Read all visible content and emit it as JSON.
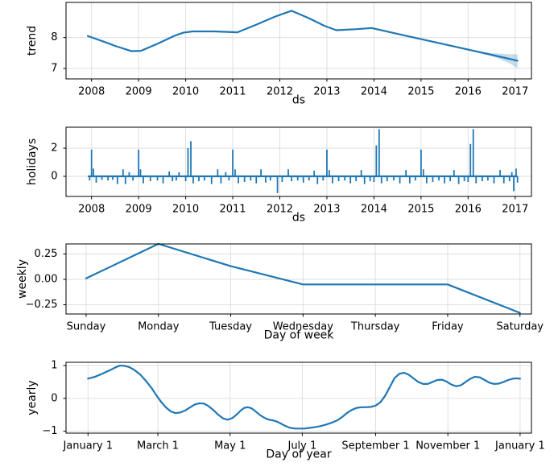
{
  "figure": {
    "background": "#ffffff",
    "line_color": "#1f77b4",
    "band_color": "#1f77b4",
    "band_opacity": 0.25,
    "grid_color": "#dcdcdc",
    "frame_color": "#000000",
    "text_color": "#000000"
  },
  "chart_data": [
    {
      "id": "trend",
      "type": "line",
      "title": "",
      "ylabel": "trend",
      "xlabel": "ds",
      "xlim": [
        2007.458,
        2017.346
      ],
      "ylim": [
        6.66,
        9.14
      ],
      "xticks": [
        2008,
        2009,
        2010,
        2011,
        2012,
        2013,
        2014,
        2015,
        2016,
        2017
      ],
      "xtick_labels": [
        "2008",
        "2009",
        "2010",
        "2011",
        "2012",
        "2013",
        "2014",
        "2015",
        "2016",
        "2017"
      ],
      "yticks": [
        7,
        8
      ],
      "ytick_labels": [
        "7",
        "8"
      ],
      "grid": true,
      "points": [
        [
          2007.92,
          8.05
        ],
        [
          2008.2,
          7.9
        ],
        [
          2008.5,
          7.73
        ],
        [
          2008.85,
          7.56
        ],
        [
          2009.05,
          7.57
        ],
        [
          2009.4,
          7.8
        ],
        [
          2009.75,
          8.05
        ],
        [
          2009.95,
          8.16
        ],
        [
          2010.15,
          8.2
        ],
        [
          2010.6,
          8.2
        ],
        [
          2011.1,
          8.17
        ],
        [
          2011.5,
          8.42
        ],
        [
          2011.9,
          8.68
        ],
        [
          2012.25,
          8.87
        ],
        [
          2012.6,
          8.64
        ],
        [
          2012.95,
          8.38
        ],
        [
          2013.2,
          8.24
        ],
        [
          2013.6,
          8.27
        ],
        [
          2013.95,
          8.31
        ],
        [
          2014.5,
          8.12
        ],
        [
          2015.0,
          7.95
        ],
        [
          2015.5,
          7.78
        ],
        [
          2016.0,
          7.61
        ],
        [
          2016.5,
          7.44
        ],
        [
          2017.05,
          7.25
        ]
      ],
      "band": {
        "x": [
          2016.28,
          2016.5,
          2016.7,
          2016.9,
          2017.05
        ],
        "upper": [
          7.53,
          7.5,
          7.48,
          7.46,
          7.46
        ],
        "lower": [
          7.51,
          7.4,
          7.28,
          7.15,
          7.01
        ]
      }
    },
    {
      "id": "holidays",
      "type": "spikes",
      "title": "",
      "ylabel": "holidays",
      "xlabel": "ds",
      "xlim": [
        2007.458,
        2017.346
      ],
      "ylim": [
        -1.43,
        3.49
      ],
      "xticks": [
        2008,
        2009,
        2010,
        2011,
        2012,
        2013,
        2014,
        2015,
        2016,
        2017
      ],
      "xtick_labels": [
        "2008",
        "2009",
        "2010",
        "2011",
        "2012",
        "2013",
        "2014",
        "2015",
        "2016",
        "2017"
      ],
      "yticks": [
        0,
        2
      ],
      "ytick_labels": [
        "0",
        "2"
      ],
      "grid": true,
      "baseline": 0,
      "data_xrange": [
        2007.92,
        2017.05
      ],
      "spikes": [
        [
          2007.96,
          -0.3
        ],
        [
          2008.0,
          1.9
        ],
        [
          2008.04,
          0.55
        ],
        [
          2008.1,
          -0.45
        ],
        [
          2008.22,
          -0.25
        ],
        [
          2008.35,
          -0.3
        ],
        [
          2008.45,
          -0.25
        ],
        [
          2008.55,
          -0.55
        ],
        [
          2008.67,
          0.5
        ],
        [
          2008.72,
          -0.55
        ],
        [
          2008.8,
          0.3
        ],
        [
          2008.88,
          -0.3
        ],
        [
          2009.0,
          1.9
        ],
        [
          2009.04,
          0.5
        ],
        [
          2009.1,
          -0.5
        ],
        [
          2009.25,
          -0.35
        ],
        [
          2009.4,
          -0.3
        ],
        [
          2009.52,
          -0.5
        ],
        [
          2009.65,
          0.35
        ],
        [
          2009.72,
          -0.35
        ],
        [
          2009.8,
          -0.3
        ],
        [
          2009.86,
          0.3
        ],
        [
          2010.0,
          -0.35
        ],
        [
          2010.05,
          2.0
        ],
        [
          2010.11,
          2.5
        ],
        [
          2010.16,
          -0.5
        ],
        [
          2010.28,
          -0.35
        ],
        [
          2010.4,
          -0.3
        ],
        [
          2010.55,
          -0.55
        ],
        [
          2010.68,
          0.5
        ],
        [
          2010.75,
          -0.5
        ],
        [
          2010.85,
          0.3
        ],
        [
          2010.92,
          -0.3
        ],
        [
          2011.0,
          1.9
        ],
        [
          2011.05,
          0.5
        ],
        [
          2011.12,
          -0.5
        ],
        [
          2011.25,
          -0.4
        ],
        [
          2011.38,
          -0.3
        ],
        [
          2011.5,
          -0.5
        ],
        [
          2011.6,
          0.5
        ],
        [
          2011.7,
          -0.45
        ],
        [
          2011.8,
          -0.3
        ],
        [
          2011.95,
          -1.2
        ],
        [
          2012.05,
          -0.4
        ],
        [
          2012.18,
          0.5
        ],
        [
          2012.25,
          -0.35
        ],
        [
          2012.38,
          -0.3
        ],
        [
          2012.5,
          -0.45
        ],
        [
          2012.62,
          -0.3
        ],
        [
          2012.73,
          0.4
        ],
        [
          2012.8,
          -0.55
        ],
        [
          2012.92,
          -0.3
        ],
        [
          2013.0,
          1.9
        ],
        [
          2013.05,
          0.45
        ],
        [
          2013.12,
          -0.5
        ],
        [
          2013.25,
          -0.35
        ],
        [
          2013.38,
          -0.3
        ],
        [
          2013.5,
          -0.5
        ],
        [
          2013.62,
          -0.35
        ],
        [
          2013.73,
          0.45
        ],
        [
          2013.8,
          -0.55
        ],
        [
          2013.92,
          -0.35
        ],
        [
          2014.0,
          -0.4
        ],
        [
          2014.05,
          2.2
        ],
        [
          2014.11,
          3.35
        ],
        [
          2014.16,
          -0.5
        ],
        [
          2014.28,
          -0.35
        ],
        [
          2014.42,
          -0.3
        ],
        [
          2014.55,
          -0.5
        ],
        [
          2014.68,
          0.45
        ],
        [
          2014.76,
          -0.5
        ],
        [
          2014.88,
          -0.3
        ],
        [
          2015.0,
          1.9
        ],
        [
          2015.05,
          0.5
        ],
        [
          2015.12,
          -0.5
        ],
        [
          2015.25,
          -0.4
        ],
        [
          2015.38,
          -0.3
        ],
        [
          2015.5,
          -0.5
        ],
        [
          2015.62,
          -0.35
        ],
        [
          2015.7,
          0.45
        ],
        [
          2015.8,
          -0.55
        ],
        [
          2015.92,
          -0.35
        ],
        [
          2016.0,
          -0.4
        ],
        [
          2016.05,
          2.3
        ],
        [
          2016.11,
          3.35
        ],
        [
          2016.17,
          -0.5
        ],
        [
          2016.3,
          -0.35
        ],
        [
          2016.42,
          -0.3
        ],
        [
          2016.55,
          -0.5
        ],
        [
          2016.68,
          0.45
        ],
        [
          2016.76,
          -0.5
        ],
        [
          2016.88,
          -0.35
        ],
        [
          2016.93,
          0.3
        ],
        [
          2016.97,
          -1.05
        ],
        [
          2017.02,
          0.55
        ],
        [
          2017.05,
          -0.45
        ]
      ]
    },
    {
      "id": "weekly",
      "type": "line",
      "title": "",
      "ylabel": "weekly",
      "xlabel": "Day of week",
      "categories": [
        "Sunday",
        "Monday",
        "Tuesday",
        "Wednesday",
        "Thursday",
        "Friday",
        "Saturday"
      ],
      "xlim": [
        -0.278,
        6.159
      ],
      "ylim": [
        -0.341,
        0.349
      ],
      "xticks": [
        0,
        1,
        2,
        3,
        4,
        5,
        6
      ],
      "xtick_labels": [
        "Sunday",
        "Monday",
        "Tuesday",
        "Wednesday",
        "Thursday",
        "Friday",
        "Saturday"
      ],
      "yticks": [
        -0.25,
        0.0,
        0.25
      ],
      "ytick_labels": [
        "−0.25",
        "0.00",
        "0.25"
      ],
      "grid": true,
      "points": [
        [
          0,
          0.01
        ],
        [
          1,
          0.35
        ],
        [
          2,
          0.13
        ],
        [
          3,
          -0.05
        ],
        [
          4,
          -0.05
        ],
        [
          5,
          -0.05
        ],
        [
          6,
          -0.33
        ]
      ]
    },
    {
      "id": "yearly",
      "type": "line",
      "title": "",
      "ylabel": "yearly",
      "xlabel": "Day of year",
      "xlim": [
        -17.57,
        375.6
      ],
      "ylim": [
        -1.06,
        1.1
      ],
      "xticks": [
        1,
        60,
        121,
        182,
        244,
        305,
        366
      ],
      "xtick_labels": [
        "January 1",
        "March 1",
        "May 1",
        "July 1",
        "September 1",
        "November 1",
        "January 1"
      ],
      "yticks": [
        -1,
        0,
        1
      ],
      "ytick_labels": [
        "−1",
        "0",
        "1"
      ],
      "grid": true,
      "points": [
        [
          1,
          0.6
        ],
        [
          7,
          0.66
        ],
        [
          13,
          0.75
        ],
        [
          19,
          0.85
        ],
        [
          24,
          0.94
        ],
        [
          28,
          1.0
        ],
        [
          32,
          0.99
        ],
        [
          36,
          0.95
        ],
        [
          40,
          0.87
        ],
        [
          45,
          0.73
        ],
        [
          50,
          0.53
        ],
        [
          55,
          0.3
        ],
        [
          59,
          0.08
        ],
        [
          63,
          -0.12
        ],
        [
          67,
          -0.28
        ],
        [
          71,
          -0.4
        ],
        [
          75,
          -0.45
        ],
        [
          79,
          -0.43
        ],
        [
          83,
          -0.37
        ],
        [
          87,
          -0.28
        ],
        [
          91,
          -0.19
        ],
        [
          95,
          -0.15
        ],
        [
          99,
          -0.16
        ],
        [
          103,
          -0.24
        ],
        [
          107,
          -0.36
        ],
        [
          111,
          -0.5
        ],
        [
          115,
          -0.61
        ],
        [
          119,
          -0.65
        ],
        [
          123,
          -0.6
        ],
        [
          127,
          -0.48
        ],
        [
          130,
          -0.37
        ],
        [
          133,
          -0.29
        ],
        [
          136,
          -0.27
        ],
        [
          139,
          -0.3
        ],
        [
          142,
          -0.38
        ],
        [
          145,
          -0.47
        ],
        [
          148,
          -0.55
        ],
        [
          151,
          -0.61
        ],
        [
          154,
          -0.65
        ],
        [
          157,
          -0.67
        ],
        [
          160,
          -0.7
        ],
        [
          163,
          -0.75
        ],
        [
          166,
          -0.81
        ],
        [
          169,
          -0.86
        ],
        [
          172,
          -0.9
        ],
        [
          176,
          -0.92
        ],
        [
          180,
          -0.92
        ],
        [
          184,
          -0.92
        ],
        [
          188,
          -0.9
        ],
        [
          192,
          -0.88
        ],
        [
          197,
          -0.85
        ],
        [
          202,
          -0.8
        ],
        [
          207,
          -0.74
        ],
        [
          212,
          -0.66
        ],
        [
          216,
          -0.56
        ],
        [
          220,
          -0.44
        ],
        [
          224,
          -0.35
        ],
        [
          228,
          -0.29
        ],
        [
          232,
          -0.27
        ],
        [
          236,
          -0.27
        ],
        [
          240,
          -0.26
        ],
        [
          244,
          -0.22
        ],
        [
          248,
          -0.12
        ],
        [
          252,
          0.08
        ],
        [
          256,
          0.35
        ],
        [
          260,
          0.62
        ],
        [
          264,
          0.75
        ],
        [
          268,
          0.78
        ],
        [
          272,
          0.72
        ],
        [
          276,
          0.61
        ],
        [
          280,
          0.5
        ],
        [
          284,
          0.44
        ],
        [
          288,
          0.44
        ],
        [
          292,
          0.5
        ],
        [
          296,
          0.56
        ],
        [
          300,
          0.57
        ],
        [
          304,
          0.51
        ],
        [
          308,
          0.42
        ],
        [
          312,
          0.37
        ],
        [
          316,
          0.4
        ],
        [
          320,
          0.5
        ],
        [
          324,
          0.6
        ],
        [
          328,
          0.66
        ],
        [
          332,
          0.64
        ],
        [
          336,
          0.56
        ],
        [
          340,
          0.48
        ],
        [
          344,
          0.44
        ],
        [
          348,
          0.45
        ],
        [
          352,
          0.5
        ],
        [
          356,
          0.56
        ],
        [
          360,
          0.6
        ],
        [
          363,
          0.61
        ],
        [
          366,
          0.6
        ]
      ]
    }
  ]
}
